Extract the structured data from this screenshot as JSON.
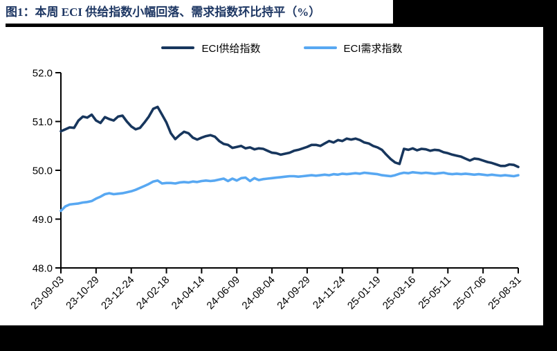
{
  "page": {
    "title": "图1：本周 ECI 供给指数小幅回落、需求指数环比持平（%）"
  },
  "chart_data": {
    "type": "line",
    "title": "图1：本周 ECI 供给指数小幅回落、需求指数环比持平（%）",
    "unit": "%",
    "grid": false,
    "legend_position": "top",
    "ylim": [
      48.0,
      52.0
    ],
    "y_tick_labels": [
      "52.0",
      "51.0",
      "50.0",
      "49.0",
      "48.0"
    ],
    "x_tick_labels": [
      "23-09-03",
      "23-10-29",
      "23-12-24",
      "24-02-18",
      "24-04-14",
      "24-06-09",
      "24-08-04",
      "24-09-29",
      "24-11-24",
      "25-01-19",
      "25-03-16",
      "25-05-11",
      "25-07-06",
      "25-08-31"
    ],
    "x_range": "weekly points from 23-09-03 to 25-08-31",
    "series": [
      {
        "id": "eci-supply",
        "name": "ECI供给指数",
        "color": "#17365d",
        "values": [
          50.8,
          50.84,
          50.88,
          50.87,
          51.02,
          51.1,
          51.08,
          51.14,
          51.02,
          50.97,
          51.09,
          51.05,
          51.02,
          51.1,
          51.12,
          51.0,
          50.9,
          50.84,
          50.87,
          50.98,
          51.1,
          51.26,
          51.3,
          51.14,
          50.98,
          50.76,
          50.64,
          50.72,
          50.79,
          50.76,
          50.67,
          50.63,
          50.67,
          50.7,
          50.72,
          50.69,
          50.6,
          50.54,
          50.52,
          50.46,
          50.48,
          50.5,
          50.45,
          50.47,
          50.43,
          50.45,
          50.44,
          50.4,
          50.36,
          50.35,
          50.32,
          50.34,
          50.36,
          50.4,
          50.42,
          50.45,
          50.48,
          50.52,
          50.52,
          50.5,
          50.55,
          50.6,
          50.57,
          50.62,
          50.6,
          50.65,
          50.63,
          50.65,
          50.62,
          50.57,
          50.55,
          50.5,
          50.47,
          50.42,
          50.32,
          50.23,
          50.16,
          50.13,
          50.44,
          50.42,
          50.45,
          50.41,
          50.44,
          50.43,
          50.4,
          50.42,
          50.41,
          50.37,
          50.35,
          50.32,
          50.3,
          50.28,
          50.24,
          50.2,
          50.24,
          50.23,
          50.2,
          50.17,
          50.15,
          50.12,
          50.09,
          50.09,
          50.12,
          50.11,
          50.07
        ]
      },
      {
        "id": "eci-demand",
        "name": "ECI需求指数",
        "color": "#58a8f2",
        "values": [
          49.17,
          49.26,
          49.3,
          49.31,
          49.32,
          49.34,
          49.35,
          49.37,
          49.42,
          49.46,
          49.51,
          49.53,
          49.51,
          49.52,
          49.53,
          49.55,
          49.57,
          49.6,
          49.64,
          49.68,
          49.72,
          49.77,
          49.79,
          49.73,
          49.74,
          49.74,
          49.73,
          49.75,
          49.76,
          49.75,
          49.77,
          49.76,
          49.78,
          49.79,
          49.78,
          49.79,
          49.81,
          49.83,
          49.78,
          49.83,
          49.79,
          49.84,
          49.85,
          49.78,
          49.84,
          49.8,
          49.82,
          49.83,
          49.84,
          49.85,
          49.86,
          49.87,
          49.88,
          49.88,
          49.87,
          49.88,
          49.89,
          49.9,
          49.89,
          49.9,
          49.91,
          49.9,
          49.92,
          49.91,
          49.93,
          49.92,
          49.93,
          49.94,
          49.93,
          49.95,
          49.94,
          49.93,
          49.92,
          49.9,
          49.89,
          49.88,
          49.9,
          49.93,
          49.95,
          49.94,
          49.96,
          49.95,
          49.94,
          49.95,
          49.94,
          49.93,
          49.94,
          49.95,
          49.93,
          49.92,
          49.93,
          49.92,
          49.93,
          49.92,
          49.91,
          49.92,
          49.91,
          49.9,
          49.91,
          49.9,
          49.89,
          49.9,
          49.89,
          49.88,
          49.9
        ]
      }
    ],
    "colors": {
      "title": "#1f3864",
      "axis": "#000000",
      "page_background_bands": "#000000"
    }
  }
}
